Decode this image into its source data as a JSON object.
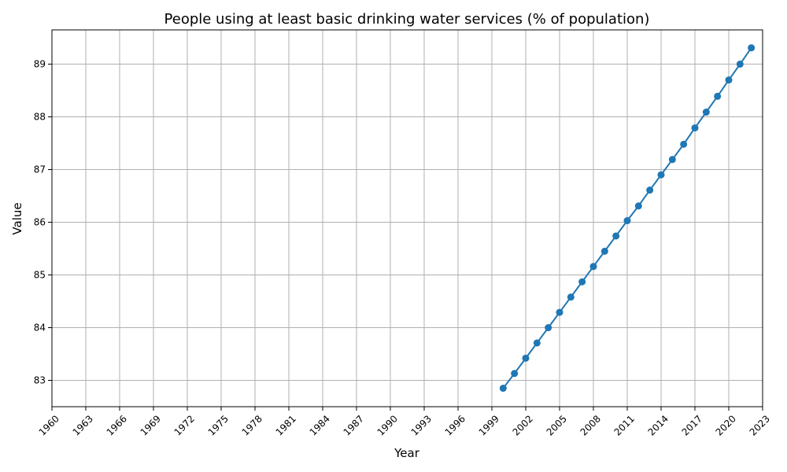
{
  "chart_data": {
    "type": "line",
    "title": "People using at least basic drinking water services (% of population)",
    "xlabel": "Year",
    "ylabel": "Value",
    "xlim": [
      1960,
      2023
    ],
    "ylim": [
      82.5,
      89.65
    ],
    "x_ticks": [
      "1960",
      "1963",
      "1966",
      "1969",
      "1972",
      "1975",
      "1978",
      "1981",
      "1984",
      "1987",
      "1990",
      "1993",
      "1996",
      "1999",
      "2002",
      "2005",
      "2008",
      "2011",
      "2014",
      "2017",
      "2020",
      "2023"
    ],
    "y_ticks": [
      "83",
      "84",
      "85",
      "86",
      "87",
      "88",
      "89"
    ],
    "grid": true,
    "color": "#1f77b4",
    "series": [
      {
        "x": [
          2000,
          2001,
          2002,
          2003,
          2004,
          2005,
          2006,
          2007,
          2008,
          2009,
          2010,
          2011,
          2012,
          2013,
          2014,
          2015,
          2016,
          2017,
          2018,
          2019,
          2020,
          2021,
          2022
        ],
        "values": [
          82.85,
          83.13,
          83.42,
          83.71,
          84.0,
          84.29,
          84.58,
          84.87,
          85.16,
          85.45,
          85.74,
          86.03,
          86.31,
          86.61,
          86.9,
          87.19,
          87.48,
          87.79,
          88.09,
          88.39,
          88.7,
          89.0,
          89.31
        ]
      }
    ]
  }
}
